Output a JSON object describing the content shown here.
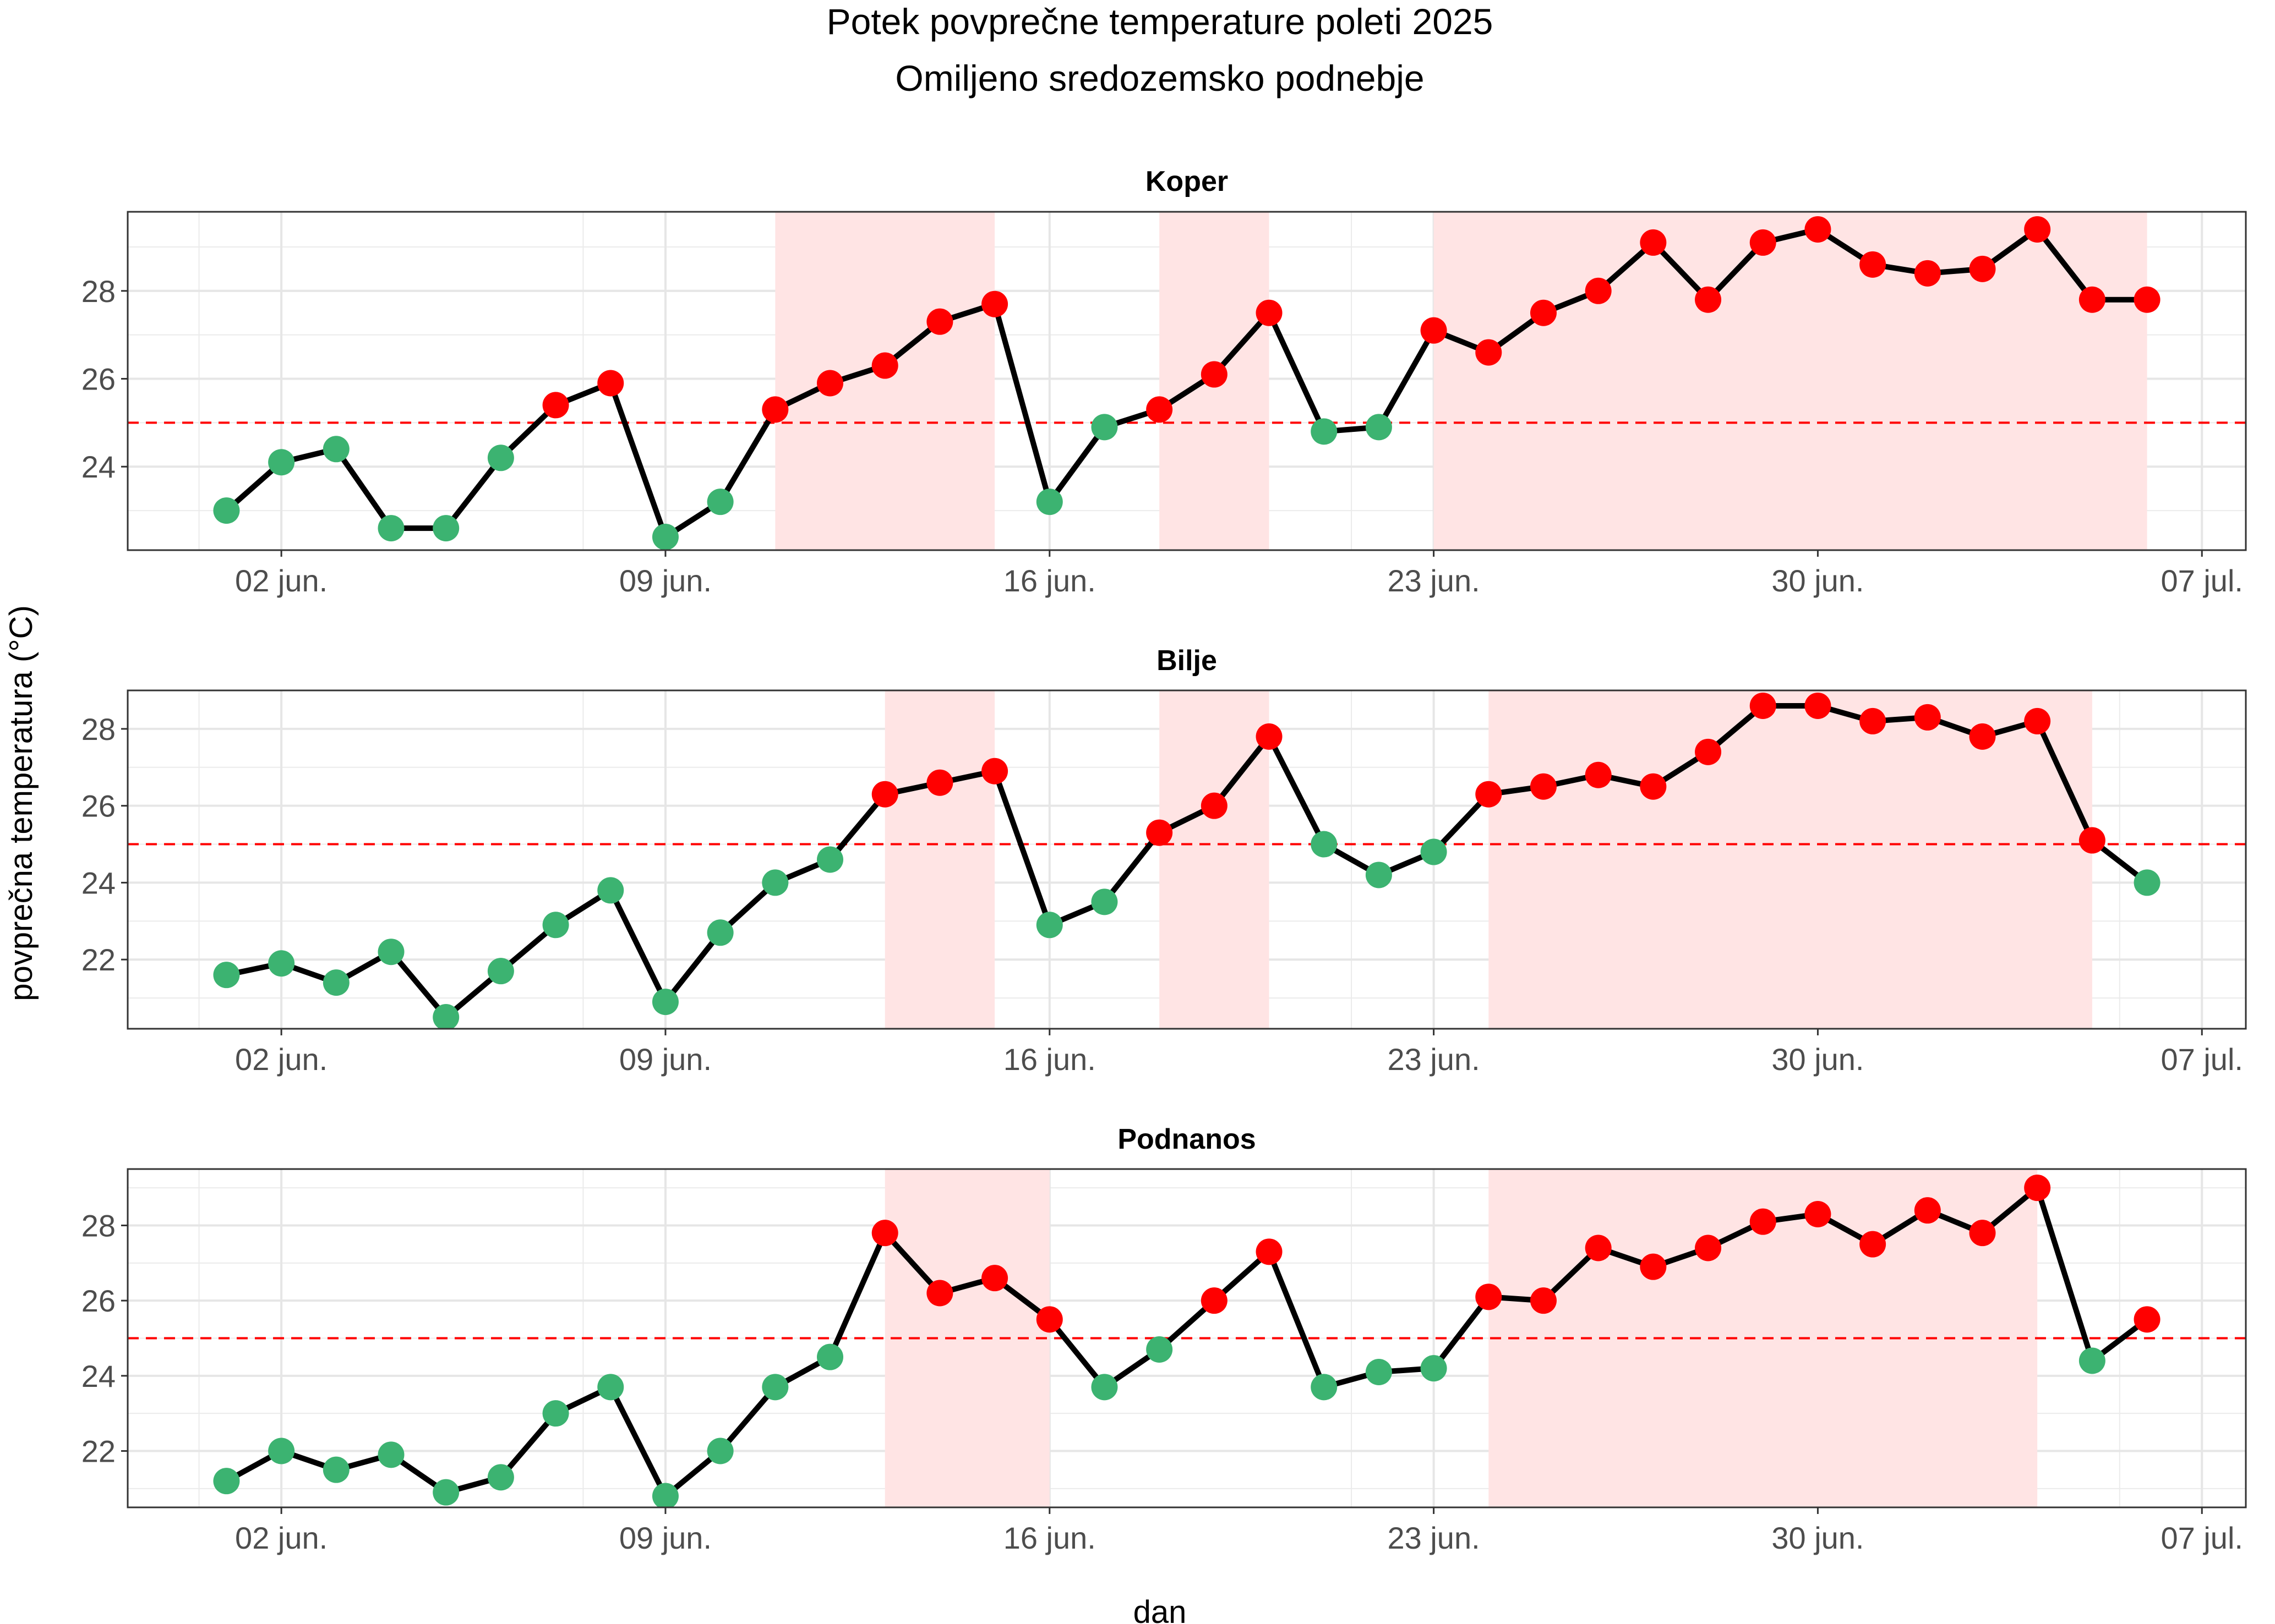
{
  "chart_data": {
    "type": "line",
    "title": "Potek povprečne temperature poleti 2025",
    "subtitle": "Omiljeno sredozemsko podnebje",
    "xlabel": "dan",
    "ylabel": "povprečna temperatura (°C)",
    "x_ticks": [
      "02 jun.",
      "09 jun.",
      "16 jun.",
      "23 jun.",
      "30 jun.",
      "07 jul."
    ],
    "threshold": 25,
    "grid": true,
    "colors": {
      "above": "#ff0000",
      "below": "#3cb371",
      "line": "#000000",
      "threshold": "#ff0000",
      "shade": "#ffe4e4"
    },
    "x": [
      "2025-06-01",
      "2025-06-02",
      "2025-06-03",
      "2025-06-04",
      "2025-06-05",
      "2025-06-06",
      "2025-06-07",
      "2025-06-08",
      "2025-06-09",
      "2025-06-10",
      "2025-06-11",
      "2025-06-12",
      "2025-06-13",
      "2025-06-14",
      "2025-06-15",
      "2025-06-16",
      "2025-06-17",
      "2025-06-18",
      "2025-06-19",
      "2025-06-20",
      "2025-06-21",
      "2025-06-22",
      "2025-06-23",
      "2025-06-24",
      "2025-06-25",
      "2025-06-26",
      "2025-06-27",
      "2025-06-28",
      "2025-06-29",
      "2025-06-30",
      "2025-07-01",
      "2025-07-02",
      "2025-07-03",
      "2025-07-04",
      "2025-07-05",
      "2025-07-06"
    ],
    "panels": [
      {
        "name": "Koper",
        "ylim": [
          22.1,
          29.8
        ],
        "yticks": [
          24,
          26,
          28
        ],
        "values": [
          23.0,
          24.1,
          24.4,
          22.6,
          22.6,
          24.2,
          25.4,
          25.9,
          22.4,
          23.2,
          25.3,
          25.9,
          26.3,
          27.3,
          27.7,
          23.2,
          24.9,
          25.3,
          26.1,
          27.5,
          24.8,
          24.9,
          27.1,
          26.6,
          27.5,
          28.0,
          29.1,
          27.8,
          29.1,
          29.4,
          28.6,
          28.4,
          28.5,
          29.4,
          27.8,
          27.8
        ]
      },
      {
        "name": "Bilje",
        "ylim": [
          20.2,
          29.0
        ],
        "yticks": [
          22,
          24,
          26,
          28
        ],
        "values": [
          21.6,
          21.9,
          21.4,
          22.2,
          20.5,
          21.7,
          22.9,
          23.8,
          20.9,
          22.7,
          24.0,
          24.6,
          26.3,
          26.6,
          26.9,
          22.9,
          23.5,
          25.3,
          26.0,
          27.8,
          25.0,
          24.2,
          24.8,
          26.3,
          26.5,
          26.8,
          26.5,
          27.4,
          28.6,
          28.6,
          28.2,
          28.3,
          27.8,
          28.2,
          25.1,
          24.0
        ]
      },
      {
        "name": "Podnanos",
        "ylim": [
          20.5,
          29.5
        ],
        "yticks": [
          22,
          24,
          26,
          28
        ],
        "values": [
          21.2,
          22.0,
          21.5,
          21.9,
          20.9,
          21.3,
          23.0,
          23.7,
          20.8,
          22.0,
          23.7,
          24.5,
          27.8,
          26.2,
          26.6,
          25.5,
          23.7,
          24.7,
          26.0,
          27.3,
          23.7,
          24.1,
          24.2,
          26.1,
          26.0,
          27.4,
          26.9,
          27.4,
          28.1,
          28.3,
          27.5,
          28.4,
          27.8,
          29.0,
          24.4,
          25.5
        ]
      }
    ]
  }
}
